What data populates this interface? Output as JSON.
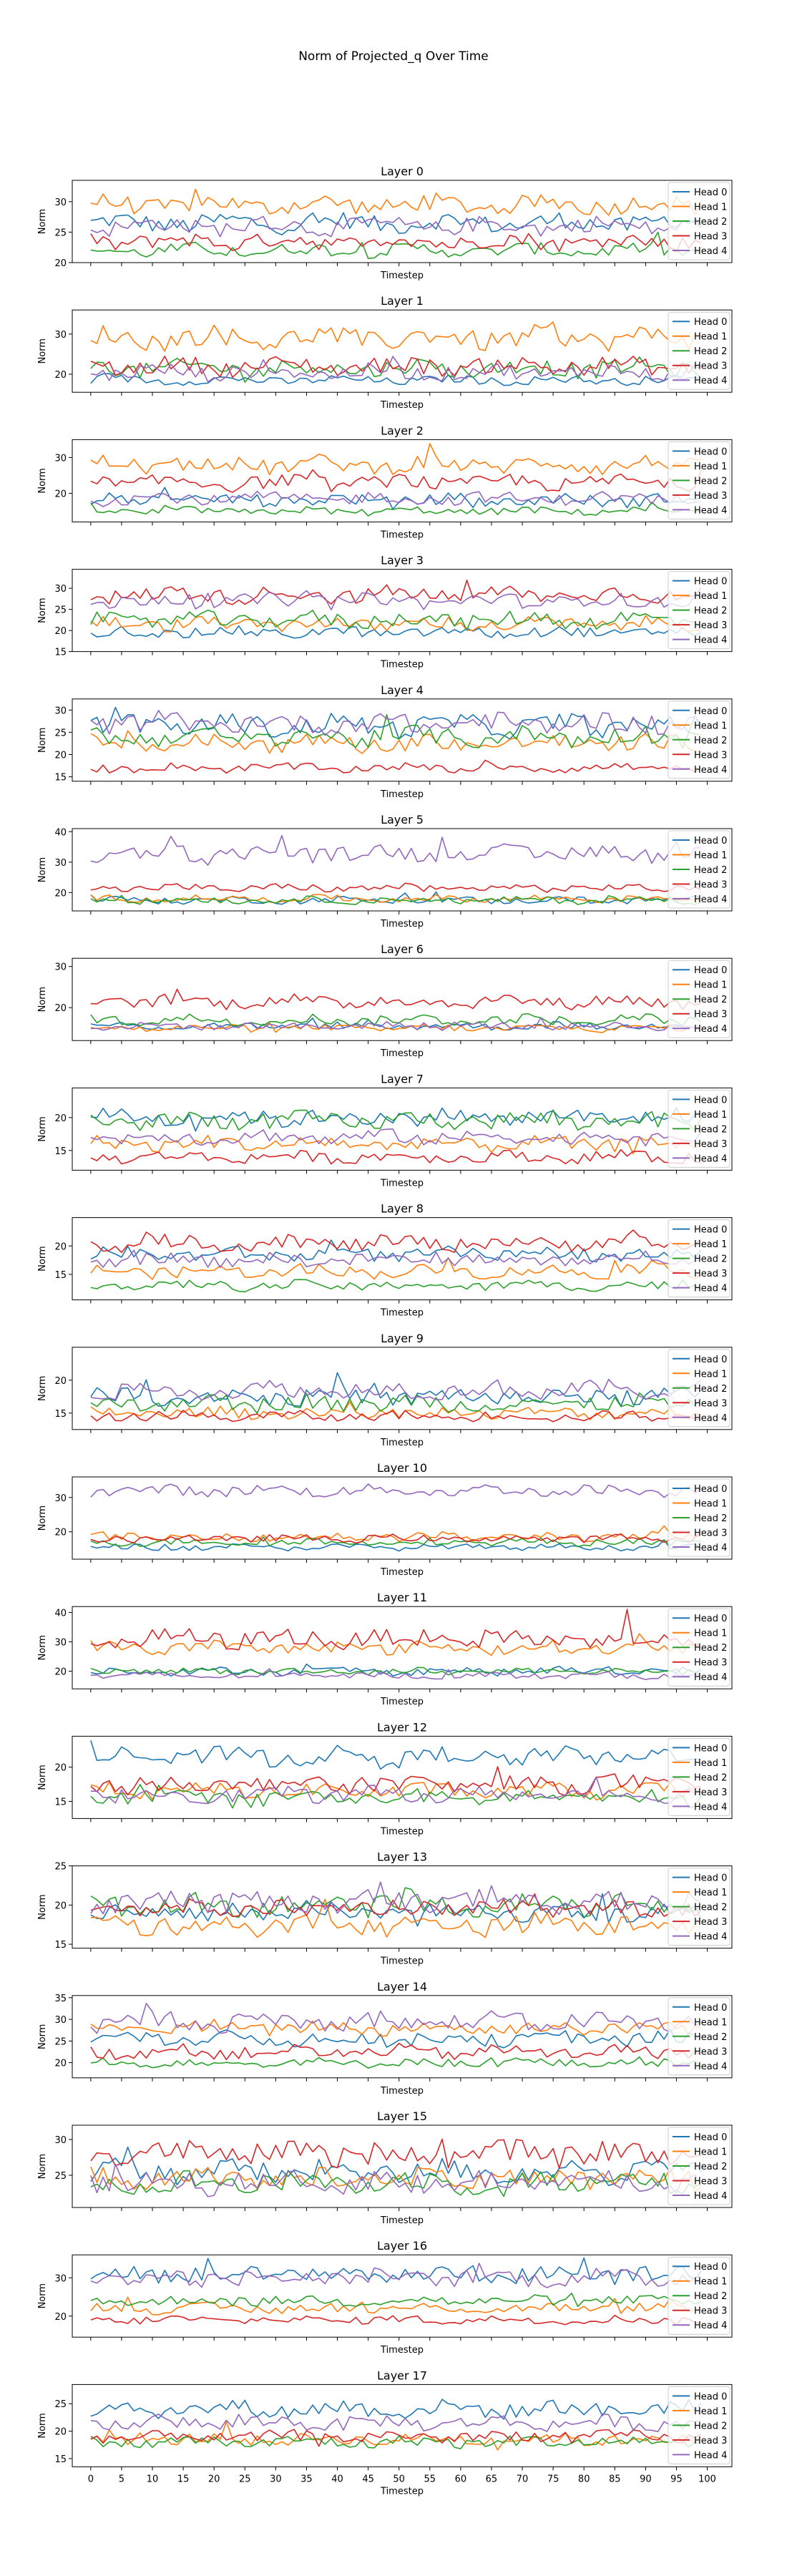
{
  "figure": {
    "title": "Norm of Projected_q Over Time"
  },
  "colors": {
    "Head 0": "#1f77b4",
    "Head 1": "#ff7f0e",
    "Head 2": "#2ca02c",
    "Head 3": "#d62728",
    "Head 4": "#9467bd"
  },
  "chart_data": [
    {
      "type": "line",
      "title": "Layer 0",
      "xlabel": "Timestep",
      "ylabel": "Norm",
      "xlim": [
        -3,
        104
      ],
      "ylim": [
        20,
        33.5
      ],
      "yticks": [
        20,
        25,
        30
      ],
      "legend": "right",
      "series": [
        {
          "name": "Head 0",
          "level": 26.5,
          "amp": 1.4
        },
        {
          "name": "Head 1",
          "level": 29.5,
          "amp": 1.4
        },
        {
          "name": "Head 2",
          "level": 22.0,
          "amp": 1.0
        },
        {
          "name": "Head 3",
          "level": 23.5,
          "amp": 1.3
        },
        {
          "name": "Head 4",
          "level": 26.0,
          "amp": 1.3
        }
      ]
    },
    {
      "type": "line",
      "title": "Layer 1",
      "xlabel": "Timestep",
      "ylabel": "Norm",
      "xlim": [
        -3,
        104
      ],
      "ylim": [
        15.5,
        36
      ],
      "yticks": [
        20,
        30
      ],
      "legend": "right",
      "series": [
        {
          "name": "Head 0",
          "level": 18.5,
          "amp": 1.0
        },
        {
          "name": "Head 1",
          "level": 29.0,
          "amp": 2.5
        },
        {
          "name": "Head 2",
          "level": 21.5,
          "amp": 2.0
        },
        {
          "name": "Head 3",
          "level": 22.0,
          "amp": 2.0
        },
        {
          "name": "Head 4",
          "level": 20.5,
          "amp": 1.8
        }
      ]
    },
    {
      "type": "line",
      "title": "Layer 2",
      "xlabel": "Timestep",
      "ylabel": "Norm",
      "xlim": [
        -3,
        104
      ],
      "ylim": [
        12,
        35
      ],
      "yticks": [
        20,
        30
      ],
      "legend": "right",
      "series": [
        {
          "name": "Head 0",
          "level": 18.0,
          "amp": 1.6
        },
        {
          "name": "Head 1",
          "level": 28.0,
          "amp": 2.2
        },
        {
          "name": "Head 2",
          "level": 15.0,
          "amp": 1.0
        },
        {
          "name": "Head 3",
          "level": 23.0,
          "amp": 2.0
        },
        {
          "name": "Head 4",
          "level": 18.5,
          "amp": 1.6
        }
      ]
    },
    {
      "type": "line",
      "title": "Layer 3",
      "xlabel": "Timestep",
      "ylabel": "Norm",
      "xlim": [
        -3,
        104
      ],
      "ylim": [
        15,
        34.5
      ],
      "yticks": [
        15,
        20,
        25,
        30
      ],
      "legend": "right",
      "series": [
        {
          "name": "Head 0",
          "level": 19.5,
          "amp": 1.2
        },
        {
          "name": "Head 1",
          "level": 21.5,
          "amp": 1.5
        },
        {
          "name": "Head 2",
          "level": 22.5,
          "amp": 1.8
        },
        {
          "name": "Head 3",
          "level": 28.5,
          "amp": 1.8
        },
        {
          "name": "Head 4",
          "level": 27.0,
          "amp": 1.6
        }
      ]
    },
    {
      "type": "line",
      "title": "Layer 4",
      "xlabel": "Timestep",
      "ylabel": "Norm",
      "xlim": [
        -3,
        104
      ],
      "ylim": [
        14,
        32.5
      ],
      "yticks": [
        15,
        20,
        25,
        30
      ],
      "legend": "right",
      "series": [
        {
          "name": "Head 0",
          "level": 26.5,
          "amp": 2.2
        },
        {
          "name": "Head 1",
          "level": 22.5,
          "amp": 1.8
        },
        {
          "name": "Head 2",
          "level": 24.0,
          "amp": 2.0
        },
        {
          "name": "Head 3",
          "level": 17.0,
          "amp": 0.9
        },
        {
          "name": "Head 4",
          "level": 27.0,
          "amp": 2.0
        }
      ]
    },
    {
      "type": "line",
      "title": "Layer 5",
      "xlabel": "Timestep",
      "ylabel": "Norm",
      "xlim": [
        -3,
        104
      ],
      "ylim": [
        14,
        41
      ],
      "yticks": [
        20,
        30,
        40
      ],
      "legend": "right",
      "series": [
        {
          "name": "Head 0",
          "level": 17.5,
          "amp": 1.0
        },
        {
          "name": "Head 1",
          "level": 18.0,
          "amp": 1.0
        },
        {
          "name": "Head 2",
          "level": 17.5,
          "amp": 1.0
        },
        {
          "name": "Head 3",
          "level": 21.5,
          "amp": 1.2
        },
        {
          "name": "Head 4",
          "level": 33.0,
          "amp": 2.5
        }
      ]
    },
    {
      "type": "line",
      "title": "Layer 6",
      "xlabel": "Timestep",
      "ylabel": "Norm",
      "xlim": [
        -3,
        104
      ],
      "ylim": [
        12,
        32
      ],
      "yticks": [
        20,
        30
      ],
      "legend": "right",
      "series": [
        {
          "name": "Head 0",
          "level": 15.5,
          "amp": 0.8
        },
        {
          "name": "Head 1",
          "level": 15.0,
          "amp": 0.8
        },
        {
          "name": "Head 2",
          "level": 17.0,
          "amp": 1.2
        },
        {
          "name": "Head 3",
          "level": 21.5,
          "amp": 1.5
        },
        {
          "name": "Head 4",
          "level": 15.5,
          "amp": 0.8
        }
      ]
    },
    {
      "type": "line",
      "title": "Layer 7",
      "xlabel": "Timestep",
      "ylabel": "Norm",
      "xlim": [
        -3,
        104
      ],
      "ylim": [
        12,
        24.5
      ],
      "yticks": [
        15,
        20
      ],
      "legend": "right",
      "series": [
        {
          "name": "Head 0",
          "level": 20.0,
          "amp": 1.2
        },
        {
          "name": "Head 1",
          "level": 16.0,
          "amp": 1.0
        },
        {
          "name": "Head 2",
          "level": 19.5,
          "amp": 1.2
        },
        {
          "name": "Head 3",
          "level": 14.0,
          "amp": 0.8
        },
        {
          "name": "Head 4",
          "level": 17.0,
          "amp": 1.0
        }
      ]
    },
    {
      "type": "line",
      "title": "Layer 8",
      "xlabel": "Timestep",
      "ylabel": "Norm",
      "xlim": [
        -3,
        104
      ],
      "ylim": [
        10.5,
        25
      ],
      "yticks": [
        15,
        20
      ],
      "legend": "right",
      "series": [
        {
          "name": "Head 0",
          "level": 18.5,
          "amp": 1.1
        },
        {
          "name": "Head 1",
          "level": 15.5,
          "amp": 1.0
        },
        {
          "name": "Head 2",
          "level": 13.0,
          "amp": 0.8
        },
        {
          "name": "Head 3",
          "level": 20.5,
          "amp": 1.2
        },
        {
          "name": "Head 4",
          "level": 17.5,
          "amp": 1.0
        }
      ]
    },
    {
      "type": "line",
      "title": "Layer 9",
      "xlabel": "Timestep",
      "ylabel": "Norm",
      "xlim": [
        -3,
        104
      ],
      "ylim": [
        12.5,
        25
      ],
      "yticks": [
        15,
        20
      ],
      "legend": "right",
      "series": [
        {
          "name": "Head 0",
          "level": 17.5,
          "amp": 1.2
        },
        {
          "name": "Head 1",
          "level": 15.0,
          "amp": 0.8
        },
        {
          "name": "Head 2",
          "level": 16.5,
          "amp": 1.2
        },
        {
          "name": "Head 3",
          "level": 14.5,
          "amp": 0.7
        },
        {
          "name": "Head 4",
          "level": 18.5,
          "amp": 1.2
        }
      ]
    },
    {
      "type": "line",
      "title": "Layer 10",
      "xlabel": "Timestep",
      "ylabel": "Norm",
      "xlim": [
        -3,
        104
      ],
      "ylim": [
        12,
        36
      ],
      "yticks": [
        20,
        30
      ],
      "legend": "right",
      "series": [
        {
          "name": "Head 0",
          "level": 15.5,
          "amp": 0.8
        },
        {
          "name": "Head 1",
          "level": 18.5,
          "amp": 1.2
        },
        {
          "name": "Head 2",
          "level": 17.0,
          "amp": 1.0
        },
        {
          "name": "Head 3",
          "level": 18.0,
          "amp": 1.0
        },
        {
          "name": "Head 4",
          "level": 32.0,
          "amp": 1.5
        }
      ]
    },
    {
      "type": "line",
      "title": "Layer 11",
      "xlabel": "Timestep",
      "ylabel": "Norm",
      "xlim": [
        -3,
        104
      ],
      "ylim": [
        14,
        42
      ],
      "yticks": [
        20,
        30,
        40
      ],
      "legend": "right",
      "series": [
        {
          "name": "Head 0",
          "level": 20.0,
          "amp": 1.2
        },
        {
          "name": "Head 1",
          "level": 28.0,
          "amp": 2.0
        },
        {
          "name": "Head 2",
          "level": 20.0,
          "amp": 1.0
        },
        {
          "name": "Head 3",
          "level": 31.0,
          "amp": 3.0
        },
        {
          "name": "Head 4",
          "level": 18.5,
          "amp": 1.0
        }
      ]
    },
    {
      "type": "line",
      "title": "Layer 12",
      "xlabel": "Timestep",
      "ylabel": "Norm",
      "xlim": [
        -3,
        104
      ],
      "ylim": [
        12.5,
        24.5
      ],
      "yticks": [
        15,
        20
      ],
      "legend": "right",
      "series": [
        {
          "name": "Head 0",
          "level": 21.5,
          "amp": 1.2
        },
        {
          "name": "Head 1",
          "level": 16.5,
          "amp": 1.0
        },
        {
          "name": "Head 2",
          "level": 15.5,
          "amp": 1.0
        },
        {
          "name": "Head 3",
          "level": 17.5,
          "amp": 1.2
        },
        {
          "name": "Head 4",
          "level": 16.0,
          "amp": 1.0
        }
      ]
    },
    {
      "type": "line",
      "title": "Layer 13",
      "xlabel": "Timestep",
      "ylabel": "Norm",
      "xlim": [
        -3,
        104
      ],
      "ylim": [
        14.5,
        25
      ],
      "yticks": [
        15,
        20,
        25
      ],
      "legend": "right",
      "series": [
        {
          "name": "Head 0",
          "level": 19.0,
          "amp": 1.0
        },
        {
          "name": "Head 1",
          "level": 17.5,
          "amp": 1.2
        },
        {
          "name": "Head 2",
          "level": 20.0,
          "amp": 1.2
        },
        {
          "name": "Head 3",
          "level": 19.5,
          "amp": 1.0
        },
        {
          "name": "Head 4",
          "level": 20.5,
          "amp": 1.4
        }
      ]
    },
    {
      "type": "line",
      "title": "Layer 14",
      "xlabel": "Timestep",
      "ylabel": "Norm",
      "xlim": [
        -3,
        104
      ],
      "ylim": [
        16.5,
        35.5
      ],
      "yticks": [
        20,
        25,
        30,
        35
      ],
      "legend": "right",
      "series": [
        {
          "name": "Head 0",
          "level": 25.5,
          "amp": 1.5
        },
        {
          "name": "Head 1",
          "level": 28.0,
          "amp": 1.5
        },
        {
          "name": "Head 2",
          "level": 20.0,
          "amp": 1.0
        },
        {
          "name": "Head 3",
          "level": 22.5,
          "amp": 1.4
        },
        {
          "name": "Head 4",
          "level": 29.5,
          "amp": 2.0
        }
      ]
    },
    {
      "type": "line",
      "title": "Layer 15",
      "xlabel": "Timestep",
      "ylabel": "Norm",
      "xlim": [
        -3,
        104
      ],
      "ylim": [
        20.5,
        32
      ],
      "yticks": [
        25,
        30
      ],
      "legend": "right",
      "series": [
        {
          "name": "Head 0",
          "level": 25.5,
          "amp": 1.5
        },
        {
          "name": "Head 1",
          "level": 24.5,
          "amp": 1.4
        },
        {
          "name": "Head 2",
          "level": 24.0,
          "amp": 1.4
        },
        {
          "name": "Head 3",
          "level": 28.0,
          "amp": 1.5
        },
        {
          "name": "Head 4",
          "level": 24.0,
          "amp": 1.5
        }
      ]
    },
    {
      "type": "line",
      "title": "Layer 16",
      "xlabel": "Timestep",
      "ylabel": "Norm",
      "xlim": [
        -3,
        104
      ],
      "ylim": [
        14.5,
        36
      ],
      "yticks": [
        20,
        30
      ],
      "legend": "right",
      "series": [
        {
          "name": "Head 0",
          "level": 31.0,
          "amp": 2.0
        },
        {
          "name": "Head 1",
          "level": 22.0,
          "amp": 1.2
        },
        {
          "name": "Head 2",
          "level": 24.0,
          "amp": 1.2
        },
        {
          "name": "Head 3",
          "level": 19.0,
          "amp": 1.0
        },
        {
          "name": "Head 4",
          "level": 30.0,
          "amp": 2.0
        }
      ]
    },
    {
      "type": "line",
      "title": "Layer 17",
      "xlabel": "Timestep",
      "ylabel": "Norm",
      "xlim": [
        -3,
        104
      ],
      "ylim": [
        13.5,
        28.5
      ],
      "yticks": [
        15,
        20,
        25
      ],
      "legend": "right",
      "series": [
        {
          "name": "Head 0",
          "level": 24.0,
          "amp": 1.4
        },
        {
          "name": "Head 1",
          "level": 18.5,
          "amp": 1.0
        },
        {
          "name": "Head 2",
          "level": 18.0,
          "amp": 1.0
        },
        {
          "name": "Head 3",
          "level": 19.0,
          "amp": 1.0
        },
        {
          "name": "Head 4",
          "level": 21.5,
          "amp": 1.2
        }
      ]
    }
  ],
  "xticks": [
    0,
    5,
    10,
    15,
    20,
    25,
    30,
    35,
    40,
    45,
    50,
    55,
    60,
    65,
    70,
    75,
    80,
    85,
    90,
    95,
    100
  ]
}
